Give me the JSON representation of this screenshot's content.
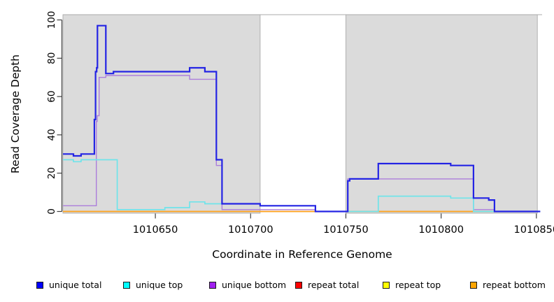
{
  "chart_data": {
    "type": "line",
    "subtype": "step-coverage-plot",
    "title": "",
    "xlabel": "Coordinate in Reference Genome",
    "ylabel": "Read Coverage Depth",
    "xlim": [
      1010601.5,
      1010853
    ],
    "ylim": [
      0,
      100
    ],
    "x_ticks": [
      1010650,
      1010700,
      1010750,
      1010800,
      1010850
    ],
    "y_ticks": [
      0,
      20,
      40,
      60,
      80,
      100
    ],
    "grid": false,
    "plot_colors": {
      "background": "#FFFFFF",
      "shaded_fill": "#DBDBDB",
      "shaded_border": "#ABABAB",
      "axis": "#404040"
    },
    "shaded_regions": [
      [
        1010601.5,
        1010705
      ],
      [
        1010750,
        1010850.5
      ]
    ],
    "series": [
      {
        "name": "repeat top",
        "line_color": "#EED93C",
        "width": 1.2,
        "points": [
          [
            1010601.5,
            0
          ],
          [
            1010852,
            0
          ]
        ]
      },
      {
        "name": "repeat total",
        "line_color": "#CC4A5E",
        "width": 1.3,
        "points": [
          [
            1010601.5,
            0
          ],
          [
            1010852,
            0
          ]
        ]
      },
      {
        "name": "repeat bottom",
        "line_color": "#FFA41E",
        "width": 1.8,
        "points": [
          [
            1010601.5,
            0
          ],
          [
            1010852,
            0
          ]
        ]
      },
      {
        "name": "unique bottom",
        "line_color": "#AC7EDB",
        "width": 1.4,
        "points": [
          [
            1010601.5,
            3
          ],
          [
            1010619,
            47
          ],
          [
            1010619.5,
            50
          ],
          [
            1010620.5,
            70
          ],
          [
            1010624,
            71
          ],
          [
            1010668,
            69
          ],
          [
            1010682,
            24
          ],
          [
            1010685,
            1
          ],
          [
            1010734,
            0
          ],
          [
            1010751,
            17
          ],
          [
            1010817,
            1
          ],
          [
            1010828,
            0
          ],
          [
            1010852,
            0
          ]
        ]
      },
      {
        "name": "unique top",
        "line_color": "#6FE4EA",
        "width": 1.7,
        "points": [
          [
            1010601.5,
            27
          ],
          [
            1010607,
            26
          ],
          [
            1010611,
            27
          ],
          [
            1010630,
            1
          ],
          [
            1010655,
            2
          ],
          [
            1010668,
            5
          ],
          [
            1010676,
            4
          ],
          [
            1010705,
            3
          ],
          [
            1010734,
            0
          ],
          [
            1010767,
            8
          ],
          [
            1010805,
            7
          ],
          [
            1010817,
            0
          ],
          [
            1010852,
            0
          ]
        ]
      },
      {
        "name": "unique total",
        "line_color": "#2424E4",
        "width": 2.2,
        "points": [
          [
            1010601.5,
            30
          ],
          [
            1010607,
            29
          ],
          [
            1010611,
            30
          ],
          [
            1010618,
            48
          ],
          [
            1010618.6,
            73
          ],
          [
            1010619.2,
            75
          ],
          [
            1010619.6,
            97
          ],
          [
            1010624,
            72
          ],
          [
            1010628,
            73
          ],
          [
            1010668,
            75
          ],
          [
            1010676,
            73
          ],
          [
            1010682,
            27
          ],
          [
            1010685,
            4
          ],
          [
            1010705,
            3
          ],
          [
            1010734,
            0
          ],
          [
            1010751,
            16
          ],
          [
            1010752,
            17
          ],
          [
            1010767,
            25
          ],
          [
            1010805,
            24
          ],
          [
            1010817,
            7
          ],
          [
            1010825,
            6
          ],
          [
            1010828,
            0
          ],
          [
            1010852,
            0
          ]
        ]
      }
    ],
    "legend": [
      {
        "label": "unique total",
        "color": "#0000FF"
      },
      {
        "label": "unique top",
        "color": "#00FFFF"
      },
      {
        "label": "unique bottom",
        "color": "#A020F0"
      },
      {
        "label": "repeat total",
        "color": "#FF0000"
      },
      {
        "label": "repeat top",
        "color": "#FFFF00"
      },
      {
        "label": "repeat bottom",
        "color": "#FFA500"
      }
    ],
    "legend_position": "bottom"
  }
}
